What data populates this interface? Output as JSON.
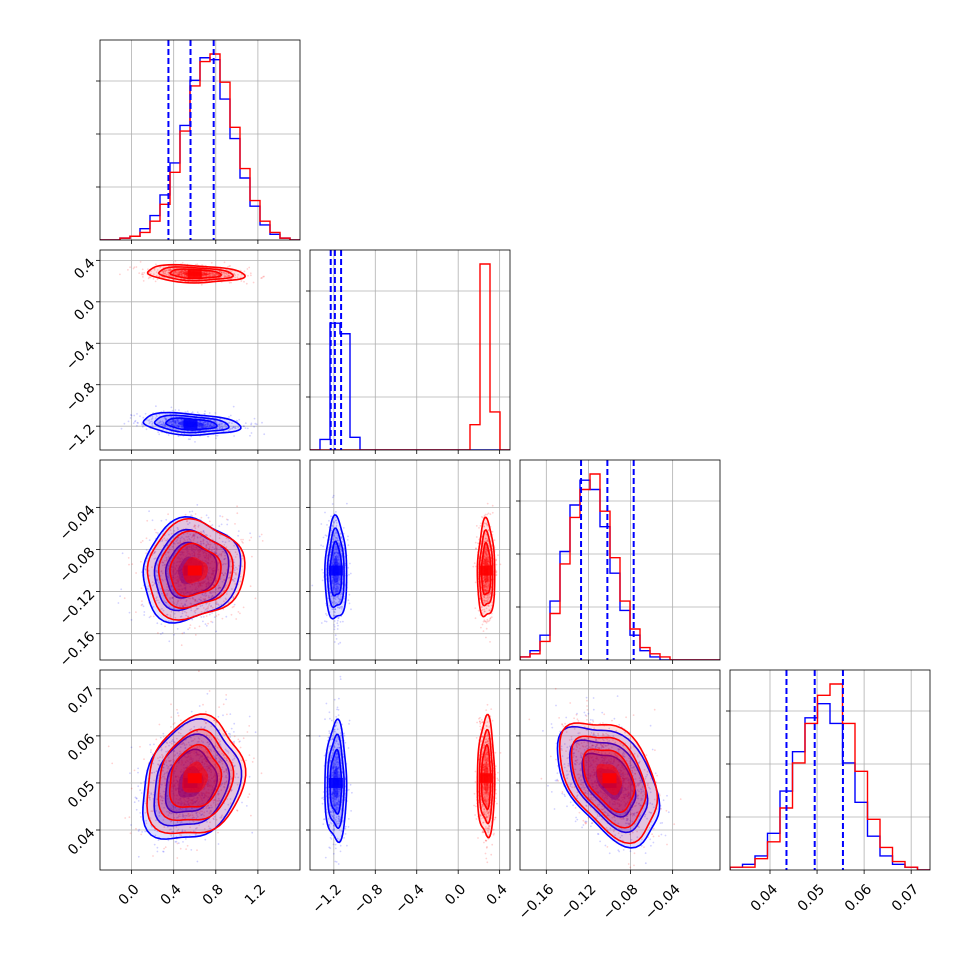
{
  "chart_data": {
    "type": "corner",
    "colors": {
      "model_a": "#0000ff",
      "model_b": "#ff0000"
    },
    "grid": true,
    "series": [
      {
        "color": "#0000ff",
        "means": [
          0.56,
          -1.18,
          -0.1,
          0.05
        ],
        "stds": [
          0.22,
          0.05,
          0.023,
          0.006
        ]
      },
      {
        "color": "#ff0000",
        "means": [
          0.6,
          0.27,
          -0.1,
          0.051
        ],
        "stds": [
          0.22,
          0.04,
          0.022,
          0.006
        ]
      }
    ],
    "quantile_lines": [
      [
        0.35,
        0.56,
        0.78
      ],
      [
        -1.23,
        -1.19,
        -1.13
      ],
      [
        -0.127,
        -0.102,
        -0.077
      ],
      [
        0.0435,
        0.0495,
        0.0555
      ]
    ],
    "variables": [
      {
        "range": [
          -0.3,
          1.6
        ],
        "ticks": [
          -0.0,
          0.4,
          0.8,
          1.2
        ],
        "tick_labels": [
          "0.0",
          "0.4",
          "0.8",
          "1.2"
        ]
      },
      {
        "range": [
          -1.43,
          0.5
        ],
        "ticks": [
          -1.2,
          -0.8,
          -0.4,
          0.0,
          0.4
        ],
        "tick_labels": [
          "−1.2",
          "−0.8",
          "−0.4",
          "0.0",
          "0.4"
        ]
      },
      {
        "range": [
          -0.185,
          0.005
        ],
        "ticks": [
          -0.16,
          -0.12,
          -0.08,
          -0.04
        ],
        "tick_labels": [
          "−0.16",
          "−0.12",
          "−0.08",
          "−0.04"
        ]
      },
      {
        "range": [
          0.0315,
          0.074
        ],
        "ticks": [
          0.04,
          0.05,
          0.06,
          0.07
        ],
        "tick_labels": [
          "0.04",
          "0.05",
          "0.06",
          "0.07"
        ]
      }
    ],
    "histograms": [
      {
        "bins": [
          -0.3,
          1.6
        ],
        "blue": [
          0,
          0,
          1,
          2,
          6,
          13,
          24,
          41,
          61,
          85,
          97,
          96,
          75,
          54,
          33,
          18,
          8,
          3,
          1,
          0
        ],
        "red": [
          0,
          0,
          1,
          2,
          4,
          10,
          19,
          36,
          58,
          82,
          95,
          99,
          84,
          60,
          38,
          21,
          10,
          4,
          1,
          0
        ]
      },
      {
        "bins": [
          -1.43,
          0.5
        ],
        "blue": [
          0,
          5,
          60,
          55,
          6,
          0,
          0,
          0,
          0,
          0,
          0,
          0,
          0,
          0,
          0,
          0,
          0,
          0,
          0,
          0
        ],
        "red": [
          0,
          0,
          0,
          0,
          0,
          0,
          0,
          0,
          0,
          0,
          0,
          0,
          0,
          0,
          0,
          0,
          12,
          88,
          18,
          0
        ]
      },
      {
        "bins": [
          -0.185,
          0.005
        ],
        "blue": [
          1,
          3,
          8,
          19,
          35,
          50,
          58,
          55,
          43,
          28,
          16,
          8,
          3,
          1,
          0,
          0,
          0,
          0,
          0,
          0
        ],
        "red": [
          1,
          2,
          6,
          15,
          31,
          46,
          55,
          60,
          48,
          33,
          19,
          10,
          4,
          2,
          1,
          0,
          0,
          0,
          0,
          0
        ]
      },
      {
        "bins": [
          0.0315,
          0.074
        ],
        "blue": [
          1,
          2,
          5,
          13,
          28,
          42,
          54,
          59,
          52,
          38,
          24,
          12,
          5,
          2,
          1,
          0
        ],
        "red": [
          1,
          1,
          4,
          10,
          22,
          38,
          52,
          62,
          66,
          52,
          35,
          18,
          8,
          3,
          1,
          0
        ]
      }
    ],
    "correlations": {
      "1-0": {
        "blue": -0.25,
        "red": -0.2
      },
      "2-0": {
        "blue": 0.1,
        "red": 0.05
      },
      "2-1": {
        "blue": 0.0,
        "red": 0.0
      },
      "3-0": {
        "blue": 0.2,
        "red": 0.15
      },
      "3-1": {
        "blue": 0.0,
        "red": 0.0
      },
      "3-2": {
        "blue": -0.45,
        "red": -0.4
      }
    }
  }
}
